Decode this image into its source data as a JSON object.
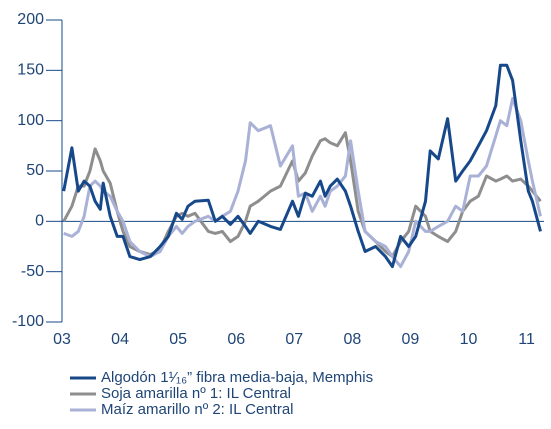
{
  "chart_data": {
    "type": "line",
    "x": [
      2003.03,
      2003.17,
      2003.28,
      2003.38,
      2003.48,
      2003.57,
      2003.66,
      2003.71,
      2003.83,
      2003.95,
      2004.05,
      2004.17,
      2004.34,
      2004.52,
      2004.69,
      2004.83,
      2004.97,
      2005.07,
      2005.17,
      2005.29,
      2005.52,
      2005.64,
      2005.76,
      2005.9,
      2006.03,
      2006.16,
      2006.24,
      2006.38,
      2006.59,
      2006.76,
      2006.97,
      2007.07,
      2007.19,
      2007.31,
      2007.45,
      2007.53,
      2007.62,
      2007.74,
      2007.88,
      2007.97,
      2008.1,
      2008.22,
      2008.4,
      2008.57,
      2008.69,
      2008.83,
      2008.97,
      2009.09,
      2009.26,
      2009.34,
      2009.48,
      2009.64,
      2009.78,
      2009.9,
      2010.03,
      2010.17,
      2010.31,
      2010.47,
      2010.55,
      2010.66,
      2010.76,
      2010.9,
      2011.03,
      2011.1,
      2011.24
    ],
    "series": [
      {
        "name": "Algodón 1¹⁄₁₆” fibra media-baja, Memphis",
        "color": "#17498a",
        "values": [
          30,
          73,
          30,
          40,
          35,
          20,
          12,
          38,
          5,
          -15,
          -15,
          -35,
          -38,
          -35,
          -25,
          -15,
          8,
          2,
          15,
          20,
          21,
          0,
          5,
          -3,
          5,
          -5,
          -12,
          0,
          -5,
          -8,
          20,
          5,
          28,
          25,
          40,
          25,
          35,
          42,
          30,
          15,
          -10,
          -30,
          -25,
          -35,
          -45,
          -15,
          -25,
          -15,
          20,
          70,
          62,
          102,
          40,
          50,
          60,
          75,
          90,
          115,
          155,
          155,
          140,
          80,
          30,
          20,
          -10
        ]
      },
      {
        "name": "Soja amarilla nº 1: IL Central",
        "color": "#8e8e8e",
        "values": [
          0,
          15,
          35,
          35,
          50,
          72,
          60,
          50,
          38,
          10,
          -10,
          -25,
          -30,
          -33,
          -28,
          -10,
          5,
          8,
          5,
          8,
          -10,
          -12,
          -10,
          -20,
          -15,
          0,
          15,
          20,
          30,
          35,
          60,
          40,
          48,
          65,
          80,
          82,
          78,
          75,
          88,
          60,
          10,
          -10,
          -20,
          -30,
          -35,
          -20,
          -10,
          15,
          5,
          -10,
          -15,
          -20,
          -10,
          10,
          20,
          25,
          45,
          40,
          42,
          45,
          40,
          42,
          35,
          30,
          20
        ]
      },
      {
        "name": "Maíz amarillo nº 2: IL Central",
        "color": "#aab1d6",
        "values": [
          -12,
          -15,
          -10,
          5,
          35,
          40,
          35,
          30,
          25,
          10,
          0,
          -20,
          -30,
          -35,
          -30,
          -15,
          -5,
          -12,
          -5,
          0,
          5,
          0,
          5,
          10,
          30,
          60,
          98,
          90,
          95,
          55,
          75,
          25,
          28,
          10,
          25,
          15,
          30,
          35,
          45,
          80,
          30,
          -10,
          -20,
          -25,
          -35,
          -45,
          -30,
          0,
          -10,
          -10,
          -5,
          0,
          15,
          10,
          45,
          45,
          55,
          85,
          100,
          95,
          122,
          100,
          60,
          40,
          5
        ]
      }
    ],
    "xlim": [
      2003,
      2011.3
    ],
    "xticks": [
      {
        "value": 2003,
        "label": "03"
      },
      {
        "value": 2004,
        "label": "04"
      },
      {
        "value": 2005,
        "label": "05"
      },
      {
        "value": 2006,
        "label": "06"
      },
      {
        "value": 2007,
        "label": "07"
      },
      {
        "value": 2008,
        "label": "08"
      },
      {
        "value": 2009,
        "label": "09"
      },
      {
        "value": 2010,
        "label": "10"
      },
      {
        "value": 2011,
        "label": "11"
      }
    ],
    "ylim": [
      -100,
      200
    ],
    "yticks": [
      -100,
      -50,
      0,
      50,
      100,
      150,
      200
    ],
    "legend": "bottom"
  }
}
